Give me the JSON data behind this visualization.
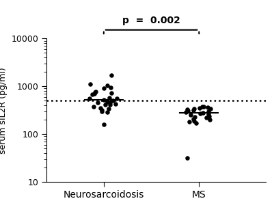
{
  "ylabel": "serum sIL2R (pg/ml)",
  "xlabel_groups": [
    "Neurosarcoidosis",
    "MS"
  ],
  "pvalue_text": "p  =  0.002",
  "dotted_line_y": 500,
  "background_color": "#ffffff",
  "dot_color": "#000000",
  "ylim_bottom": 10,
  "ylim_top": 10000,
  "yticks": [
    10,
    100,
    1000,
    10000
  ],
  "neuro_x_center": 1,
  "ms_x_center": 2,
  "xlim": [
    0.4,
    2.7
  ],
  "neuro_data": [
    1700,
    1100,
    1050,
    950,
    900,
    780,
    750,
    720,
    700,
    680,
    580,
    560,
    550,
    530,
    510,
    480,
    460,
    450,
    430,
    420,
    410,
    370,
    350,
    340,
    320,
    300,
    290,
    160
  ],
  "ms_data": [
    380,
    370,
    360,
    350,
    340,
    340,
    330,
    320,
    310,
    300,
    290,
    280,
    270,
    260,
    250,
    240,
    230,
    220,
    210,
    200,
    190,
    180,
    170,
    32
  ],
  "jitter_scale": 0.15,
  "dot_size": 22,
  "median_bar_half": 0.2,
  "bracket_x1": 1.0,
  "bracket_x2": 2.0,
  "font_size_ticks": 9,
  "font_size_ylabel": 9,
  "font_size_xlabel": 10,
  "font_size_pval": 10
}
